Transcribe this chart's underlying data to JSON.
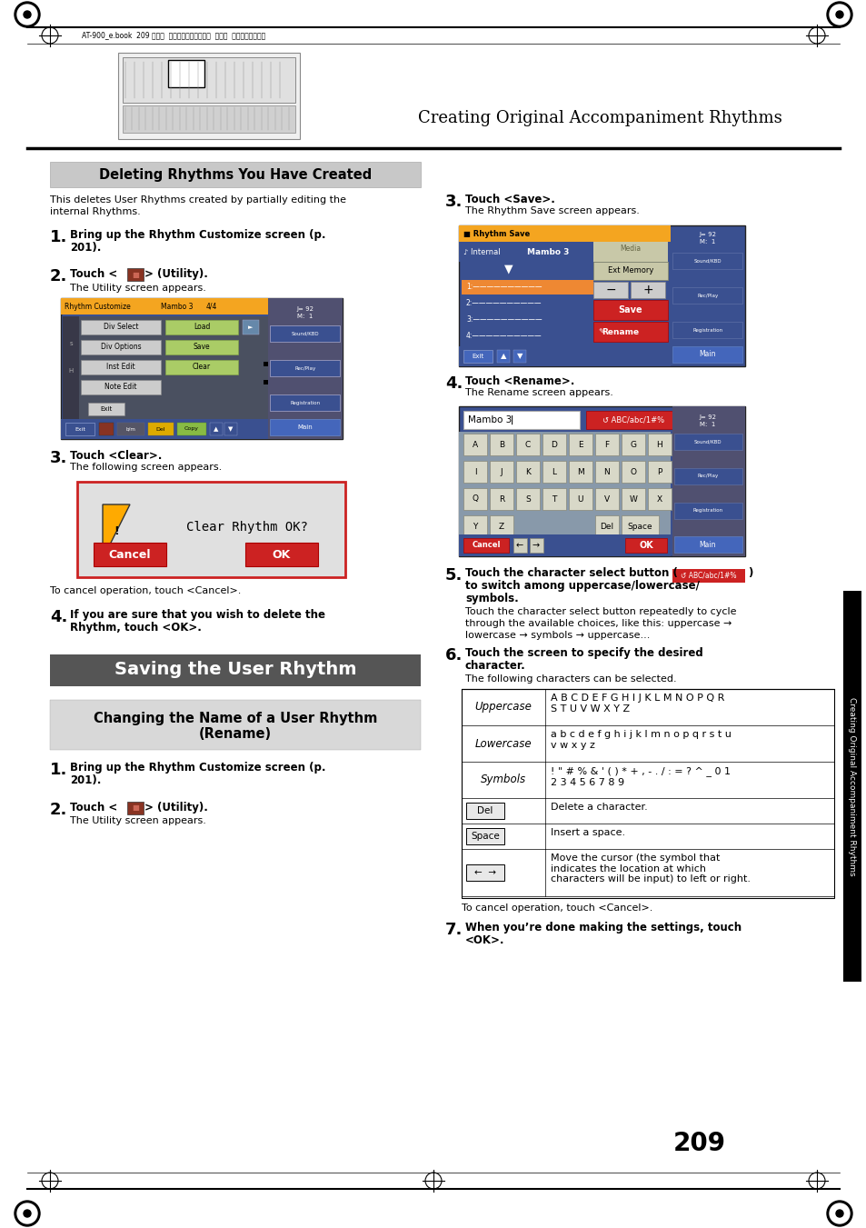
{
  "page_bg": "#ffffff",
  "page_number": "209",
  "header_text": "Creating Original Accompaniment Rhythms",
  "header_meta": "AT-900_e.book  209 ページ  ２００８年９月１６日  火曜日  午前１０時３８分",
  "sidebar_text": "Creating Original Accompaniment Rhythms",
  "section1_title": "Deleting Rhythms You Have Created",
  "section2_title": "Saving the User Rhythm",
  "section3_title_line1": "Changing the Name of a User Rhythm",
  "section3_title_line2": "(Rename)"
}
